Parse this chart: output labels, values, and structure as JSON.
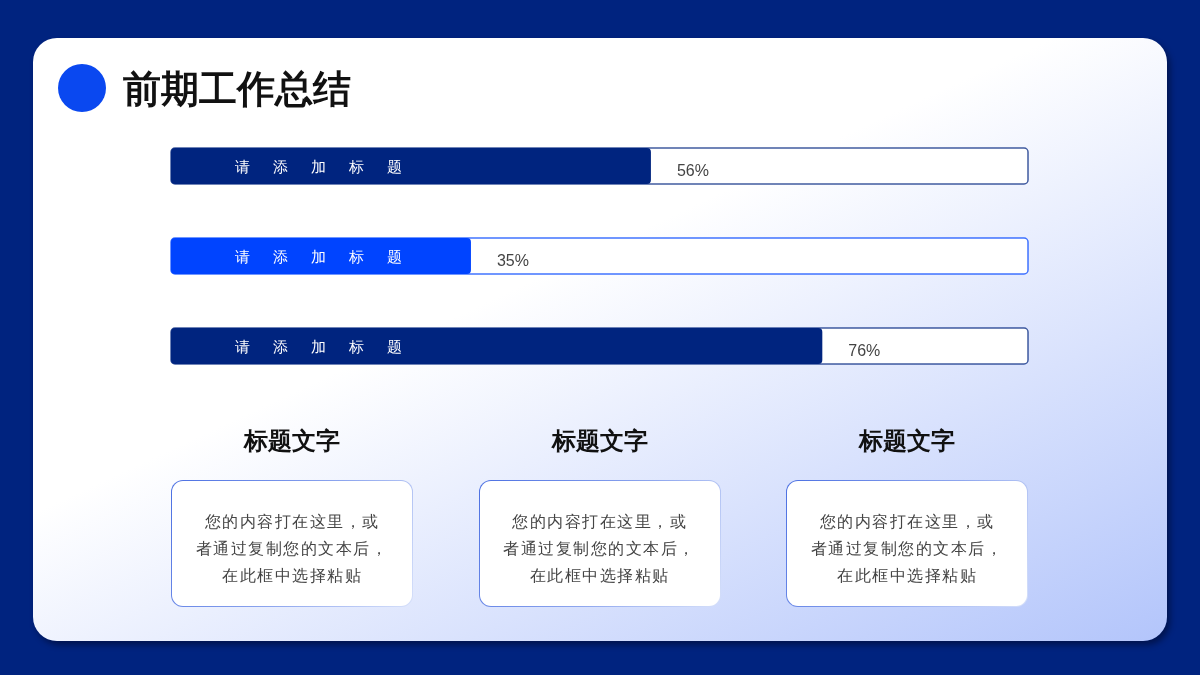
{
  "chart_data": [
    {
      "type": "bar",
      "title": "前期工作总结",
      "orientation": "horizontal",
      "categories": [
        "请添加标题",
        "请添加标题",
        "请添加标题"
      ],
      "values": [
        56,
        35,
        76
      ],
      "colors": [
        "#00247f",
        "#0044ff",
        "#00247f"
      ],
      "xlim": [
        0,
        100
      ],
      "value_labels": [
        "56%",
        "35%",
        "76%"
      ],
      "tick_labels": "y"
    },
    {
      "type": "other",
      "title": "标题文字",
      "annotations": [
        "您的内容打在这里，或者通过复制您的文本后，在此框中选择粘贴"
      ]
    },
    {
      "type": "other",
      "title": "标题文字",
      "annotations": [
        "您的内容打在这里，或者通过复制您的文本后，在此框中选择粘贴"
      ]
    },
    {
      "type": "other",
      "title": "标题文字",
      "annotations": [
        "您的内容打在这里，或者通过复制您的文本后，在此框中选择粘贴"
      ]
    }
  ]
}
